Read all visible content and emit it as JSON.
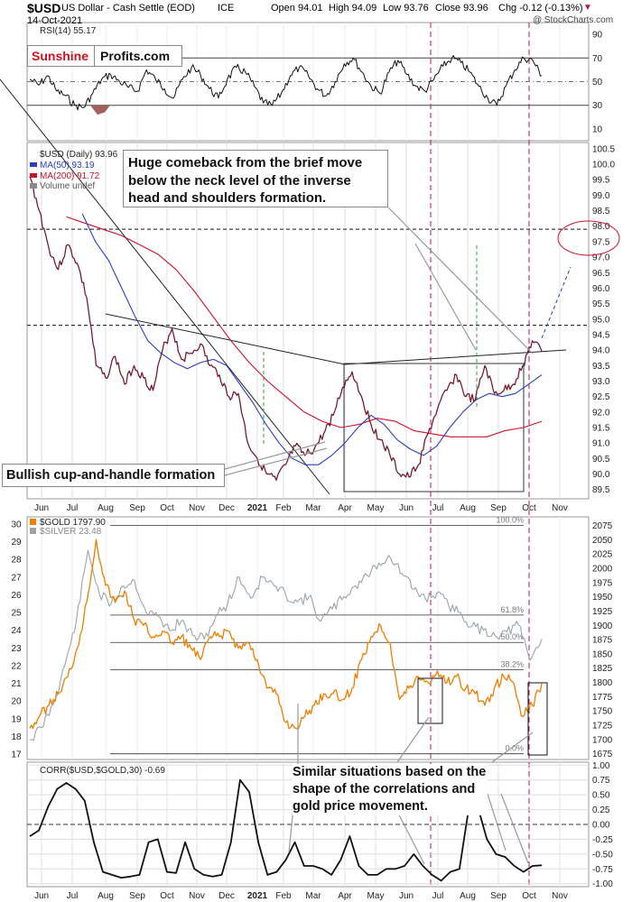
{
  "header": {
    "symbol": "$USD",
    "name": "US Dollar - Cash Settle (EOD)",
    "exchange": "ICE",
    "date": "14-Oct-2021",
    "open": "Open 94.01",
    "high": "High 94.09",
    "low": "Low 93.76",
    "close": "Close 93.96",
    "chg": "Chg -0.12 (-0.13%)",
    "chg_marker": "▼",
    "watermark": "@ StockCharts.com"
  },
  "logo": {
    "part1": "Sunshine",
    "part2": "Profits.com"
  },
  "annotations": {
    "comeback": [
      "Huge comeback from the brief move",
      "below the neck level of the inverse",
      "head and shoulders formation."
    ],
    "cup": "Bullish cup-and-handle formation",
    "similar": [
      "Similar situations based on the",
      "shape of the correlations and",
      "gold price movement."
    ]
  },
  "colors": {
    "gold": "#f07d00",
    "silver": "#9aa3ab",
    "ma50": "#2a3cc8",
    "ma200": "#d0102a",
    "marker": "#c0115a",
    "text_red": "#c0115a"
  },
  "chart_data": [
    {
      "type": "line",
      "title": "RSI(14) 55.17",
      "ylim": [
        0,
        100
      ],
      "yticks": [
        10,
        30,
        50,
        70,
        90
      ],
      "overbought": 70,
      "oversold": 30,
      "series": [
        {
          "name": "RSI(14)",
          "values": [
            52,
            47,
            55,
            42,
            38,
            30,
            28,
            40,
            52,
            56,
            50,
            45,
            42,
            60,
            52,
            44,
            36,
            52,
            62,
            56,
            44,
            36,
            52,
            62,
            58,
            46,
            32,
            30,
            40,
            55,
            62,
            55,
            44,
            38,
            50,
            65,
            70,
            58,
            46,
            40,
            58,
            68,
            56,
            46,
            42,
            52,
            63,
            70,
            66,
            58,
            46,
            36,
            30,
            46,
            60,
            70,
            68,
            55
          ]
        }
      ]
    },
    {
      "type": "line",
      "title": "$USD (Daily) 93.96",
      "legend": [
        "MA(50) 93.19",
        "MA(200) 91.72",
        "Volume undef"
      ],
      "ylim": [
        89.2,
        100.7
      ],
      "yticks": [
        89.5,
        90.0,
        90.5,
        91.0,
        91.5,
        92.0,
        92.5,
        93.0,
        93.5,
        94.0,
        94.5,
        95.0,
        95.5,
        96.0,
        96.5,
        97.0,
        97.5,
        98.0,
        98.5,
        99.0,
        99.5,
        100.0,
        100.5
      ],
      "x_labels": [
        "Jun",
        "Jul",
        "Aug",
        "Sep",
        "Oct",
        "Nov",
        "Dec",
        "2021",
        "Feb",
        "Mar",
        "Apr",
        "May",
        "Jun",
        "Jul",
        "Aug",
        "Sep",
        "Oct",
        "Nov"
      ],
      "levels": [
        97.9,
        94.8
      ],
      "series": [
        {
          "name": "$USD",
          "values": [
            99.6,
            98.5,
            97.3,
            96.6,
            97.4,
            96.8,
            95.7,
            93.5,
            93.1,
            93.8,
            92.9,
            93.5,
            93.1,
            92.7,
            94.0,
            94.7,
            93.7,
            93.9,
            94.2,
            93.5,
            93.2,
            92.5,
            92.6,
            91.0,
            90.5,
            90.0,
            89.8,
            90.3,
            90.9,
            90.6,
            90.8,
            91.3,
            91.9,
            92.8,
            93.3,
            92.5,
            91.6,
            91.1,
            90.6,
            90.0,
            89.9,
            90.3,
            91.3,
            92.1,
            92.7,
            93.2,
            92.5,
            92.4,
            93.5,
            92.6,
            92.7,
            92.9,
            93.5,
            94.3,
            93.96
          ]
        },
        {
          "name": "MA(50)",
          "values": [
            null,
            null,
            null,
            null,
            98.4,
            97.5,
            96.9,
            96.0,
            95.1,
            94.3,
            93.9,
            93.6,
            93.4,
            93.6,
            93.7,
            93.5,
            92.9,
            92.3,
            91.6,
            91.0,
            90.5,
            90.3,
            90.3,
            90.6,
            91.0,
            91.5,
            91.9,
            91.6,
            91.1,
            90.8,
            90.6,
            90.9,
            91.5,
            92.0,
            92.4,
            92.6,
            92.5,
            92.6,
            92.9,
            93.2
          ]
        },
        {
          "name": "MA(200)",
          "values": [
            null,
            null,
            98.3,
            98.1,
            97.9,
            97.7,
            97.4,
            97.1,
            96.6,
            95.9,
            95.1,
            94.3,
            93.6,
            93.0,
            92.5,
            92.0,
            91.7,
            91.5,
            91.6,
            91.8,
            91.7,
            91.4,
            91.3,
            91.2,
            91.2,
            91.2,
            91.4,
            91.5,
            91.7
          ]
        }
      ]
    },
    {
      "type": "line",
      "title": "$GOLD 1797.90",
      "legend": [
        "$GOLD 1797.90",
        "$SILVER 23.48"
      ],
      "ylim_silver": [
        16.7,
        30.4
      ],
      "yticks_silver": [
        17,
        18,
        19,
        20,
        21,
        22,
        23,
        24,
        25,
        26,
        27,
        28,
        29,
        30
      ],
      "ylim_gold": [
        1665,
        2090
      ],
      "yticks_gold": [
        1675,
        1700,
        1725,
        1750,
        1775,
        1800,
        1825,
        1850,
        1875,
        1900,
        1925,
        1950,
        1975,
        2000,
        2025,
        2050,
        2075
      ],
      "fib_levels": [
        {
          "label": "100.0%",
          "value": 2075
        },
        {
          "label": "61.8%",
          "value": 1918
        },
        {
          "label": "50.0%",
          "value": 1870
        },
        {
          "label": "38.2%",
          "value": 1822
        },
        {
          "label": "0.0%",
          "value": 1675
        }
      ],
      "series": [
        {
          "name": "$GOLD",
          "values": [
            1720,
            1740,
            1760,
            1780,
            1810,
            1860,
            1940,
            2050,
            1970,
            1940,
            1960,
            1910,
            1900,
            1880,
            1890,
            1870,
            1880,
            1860,
            1840,
            1880,
            1880,
            1890,
            1860,
            1870,
            1840,
            1790,
            1780,
            1730,
            1720,
            1740,
            1760,
            1780,
            1780,
            1770,
            1790,
            1840,
            1880,
            1900,
            1870,
            1770,
            1790,
            1810,
            1800,
            1820,
            1800,
            1810,
            1790,
            1780,
            1760,
            1790,
            1810,
            1800,
            1740,
            1760,
            1798
          ]
        },
        {
          "name": "$SILVER",
          "values": [
            17.8,
            18.5,
            19.8,
            22,
            24.5,
            28.5,
            26,
            25.5,
            26.5,
            26.8,
            25,
            24.8,
            24,
            24.5,
            23.7,
            23.5,
            24.8,
            25.5,
            27,
            25.8,
            27,
            26.5,
            26,
            25.6,
            25.9,
            24.5,
            25.2,
            25.9,
            26.5,
            27.1,
            27.8,
            28.1,
            27.2,
            26.3,
            25.8,
            26.1,
            25.4,
            25.0,
            24.2,
            24.0,
            23.7,
            23.9,
            24.3,
            22.3,
            23.5
          ]
        }
      ]
    },
    {
      "type": "line",
      "title": "CORR($USD,$GOLD,30) -0.69",
      "ylim": [
        -1.05,
        1.05
      ],
      "yticks": [
        1.0,
        0.75,
        0.5,
        0.25,
        0.0,
        -0.25,
        -0.5,
        -0.75,
        -1.0
      ],
      "x_labels": [
        "Jun",
        "Jul",
        "Aug",
        "Sep",
        "Oct",
        "Nov",
        "Dec",
        "2021",
        "Feb",
        "Mar",
        "Apr",
        "May",
        "Jun",
        "Jul",
        "Aug",
        "Sep",
        "Oct",
        "Nov"
      ],
      "series": [
        {
          "name": "CORR($USD,$GOLD,30)",
          "values": [
            -0.2,
            -0.1,
            0.3,
            0.6,
            0.7,
            0.6,
            0.4,
            -0.3,
            -0.8,
            -0.85,
            -0.9,
            -0.88,
            -0.85,
            -0.3,
            -0.25,
            -0.8,
            -0.82,
            -0.3,
            -0.75,
            -0.85,
            -0.88,
            -0.85,
            -0.3,
            0.75,
            0.55,
            -0.3,
            -0.85,
            -0.8,
            -0.6,
            -0.3,
            -0.7,
            -0.7,
            -0.75,
            -0.85,
            -0.6,
            -0.2,
            -0.7,
            -0.85,
            -0.85,
            -0.75,
            -0.75,
            -0.7,
            -0.5,
            -0.7,
            -0.85,
            -0.95,
            -0.8,
            -0.75,
            0.25,
            0.3,
            -0.25,
            -0.5,
            -0.55,
            -0.7,
            -0.8,
            -0.7,
            -0.69
          ]
        }
      ]
    }
  ]
}
